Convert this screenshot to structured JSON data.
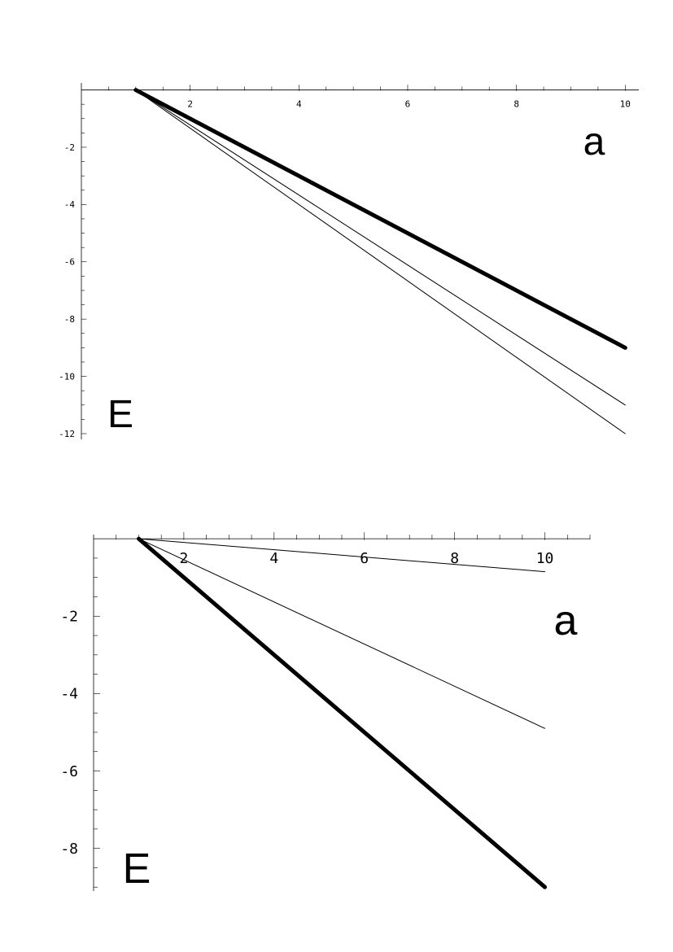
{
  "chart_data": [
    {
      "type": "line",
      "xlim": [
        0,
        10.25
      ],
      "ylim": [
        -12.2,
        0.3
      ],
      "x_ticks": [
        2,
        4,
        6,
        8,
        10
      ],
      "y_ticks": [
        -2,
        -4,
        -6,
        -8,
        -10,
        -12
      ],
      "x_tick_labels": [
        "2",
        "4",
        "6",
        "8",
        "10"
      ],
      "y_tick_labels": [
        "-2",
        "-4",
        "-6",
        "-8",
        "-10",
        "-12"
      ],
      "xlabel": "a",
      "ylabel": "E",
      "series": [
        {
          "x": [
            1,
            10
          ],
          "y": [
            0,
            -9
          ],
          "style": "thick"
        },
        {
          "x": [
            1,
            10
          ],
          "y": [
            0,
            -11
          ],
          "style": "thin"
        },
        {
          "x": [
            1,
            10
          ],
          "y": [
            0,
            -12
          ],
          "style": "thin"
        }
      ]
    },
    {
      "type": "line",
      "xlim": [
        0,
        11.0
      ],
      "ylim": [
        -9.1,
        0.15
      ],
      "x_ticks": [
        2,
        4,
        6,
        8,
        10
      ],
      "y_ticks": [
        -2,
        -4,
        -6,
        -8
      ],
      "x_tick_labels": [
        "2",
        "4",
        "6",
        "8",
        "10"
      ],
      "y_tick_labels": [
        "-2",
        "-4",
        "-6",
        "-8"
      ],
      "xlabel": "a",
      "ylabel": "E",
      "series": [
        {
          "x": [
            1,
            10
          ],
          "y": [
            0,
            -9
          ],
          "style": "thick"
        },
        {
          "x": [
            1,
            10
          ],
          "y": [
            0,
            -4.9
          ],
          "style": "thin"
        },
        {
          "x": [
            1,
            10
          ],
          "y": [
            0,
            -0.85
          ],
          "style": "thin"
        }
      ]
    }
  ]
}
